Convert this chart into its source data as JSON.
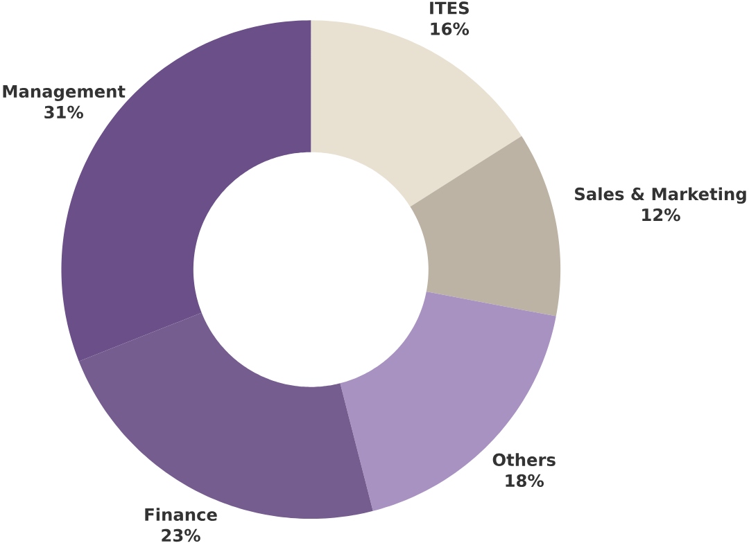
{
  "chart_data": {
    "type": "donut",
    "categories": [
      "ITES",
      "Sales & Marketing",
      "Others",
      "Finance",
      "Management"
    ],
    "values": [
      16,
      12,
      18,
      23,
      31
    ],
    "value_labels": [
      "16%",
      "12%",
      "18%",
      "23%",
      "31%"
    ],
    "colors": [
      "#e8e1d2",
      "#bcb3a4",
      "#a892c1",
      "#755d8f",
      "#6b4f88"
    ]
  }
}
